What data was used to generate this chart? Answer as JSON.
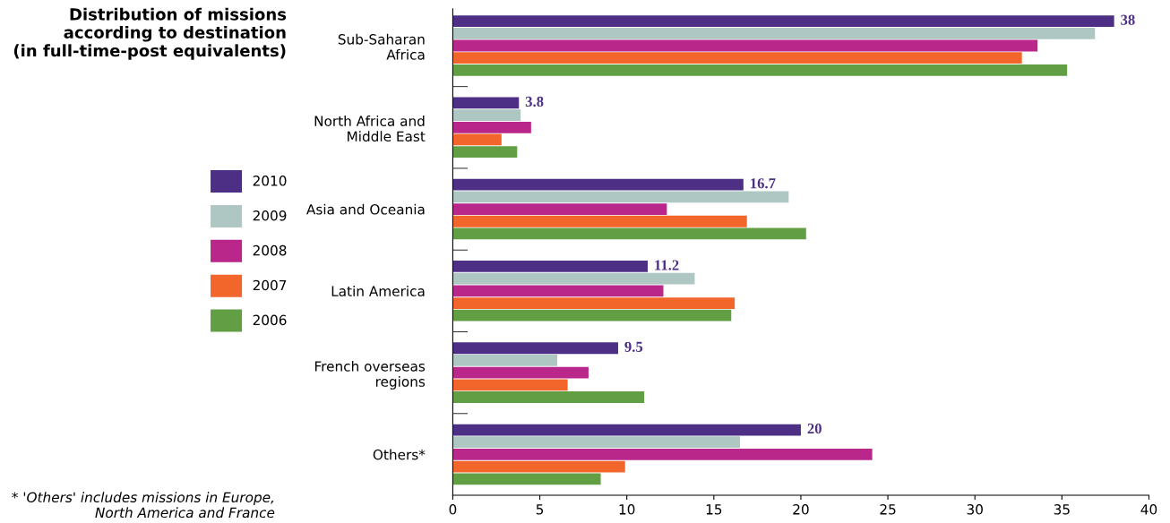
{
  "chart_data": {
    "type": "bar",
    "orientation": "horizontal",
    "title": "Distribution of missions\naccording to destination\n(in full-time-post equivalents)",
    "categories": [
      "Sub-Saharan\nAfrica",
      "North Africa and\nMiddle East",
      "Asia and Oceania",
      "Latin America",
      "French overseas\nregions",
      "Others*"
    ],
    "series": [
      {
        "name": "2010",
        "color": "#4e2f86",
        "values": [
          38,
          3.8,
          16.7,
          11.2,
          9.5,
          20
        ],
        "value_labels": [
          "38",
          "3.8",
          "16.7",
          "11.2",
          "9.5",
          "20"
        ]
      },
      {
        "name": "2009",
        "color": "#aec7c2",
        "values": [
          36.9,
          3.9,
          19.3,
          13.9,
          6.0,
          16.5
        ]
      },
      {
        "name": "2008",
        "color": "#b9278a",
        "values": [
          33.6,
          4.5,
          12.3,
          12.1,
          7.8,
          24.1
        ]
      },
      {
        "name": "2007",
        "color": "#f2662c",
        "values": [
          32.7,
          2.8,
          16.9,
          16.2,
          6.6,
          9.9
        ]
      },
      {
        "name": "2006",
        "color": "#629e43",
        "values": [
          35.3,
          3.7,
          20.3,
          16.0,
          11.0,
          8.5
        ]
      }
    ],
    "xlim": [
      0,
      40
    ],
    "xticks": [
      0,
      5,
      10,
      15,
      20,
      25,
      30,
      35,
      40
    ],
    "grid": false,
    "legend": "left",
    "annotations": [
      "* 'Others' includes missions in Europe,\nNorth America and France"
    ]
  }
}
